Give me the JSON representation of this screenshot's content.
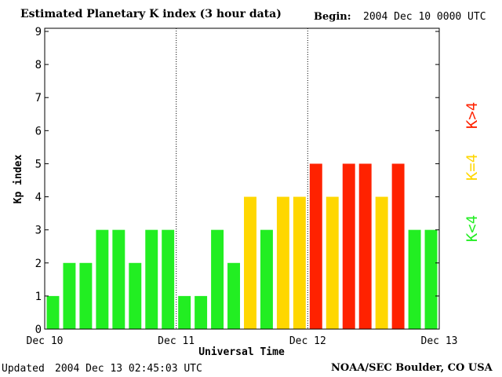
{
  "header": {
    "title": "Estimated Planetary K index (3 hour data)",
    "begin_label": "Begin:",
    "begin_value": "2004 Dec 10 0000 UTC"
  },
  "footer": {
    "updated_label": "Updated",
    "updated_value": "2004 Dec 13 02:45:03 UTC",
    "source": "NOAA/SEC Boulder, CO USA"
  },
  "legend": {
    "low": {
      "label": "K<4",
      "color": "#22ee22"
    },
    "mid": {
      "label": "K=4",
      "color": "#ffd700"
    },
    "high": {
      "label": "K>4",
      "color": "#ff2200"
    }
  },
  "chart_data": {
    "type": "bar",
    "title": "Estimated Planetary K index (3 hour data)",
    "xlabel": "Universal Time",
    "ylabel": "Kp index",
    "ylim": [
      0,
      9
    ],
    "yticks": [
      0,
      1,
      2,
      3,
      4,
      5,
      6,
      7,
      8,
      9
    ],
    "day_labels": [
      "Dec 10",
      "Dec 11",
      "Dec 12",
      "Dec 13"
    ],
    "bars_per_day": 8,
    "values": [
      1,
      2,
      2,
      3,
      3,
      2,
      3,
      3,
      1,
      1,
      3,
      2,
      4,
      3,
      4,
      4,
      5,
      4,
      5,
      5,
      4,
      5,
      3,
      3
    ],
    "colors": {
      "below": "#22ee22",
      "equal": "#ffd700",
      "above": "#ff2200"
    }
  }
}
